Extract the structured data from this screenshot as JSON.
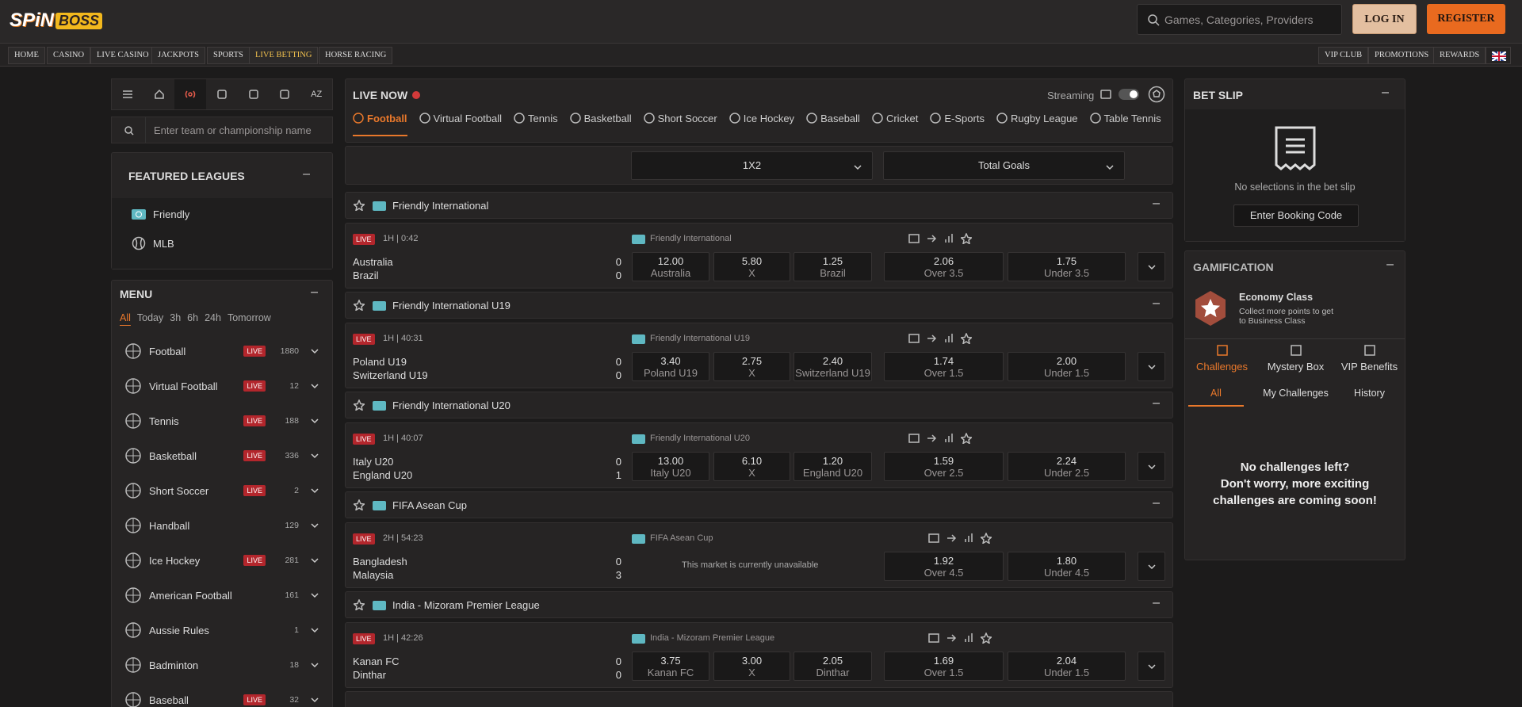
{
  "header": {
    "logo": [
      "SPiN",
      "BOSS"
    ],
    "search_placeholder": "Games, Categories, Providers",
    "login": "LOG IN",
    "register": "REGISTER"
  },
  "nav": {
    "left": [
      "HOME",
      "CASINO",
      "LIVE CASINO",
      "JACKPOTS",
      "SPORTS",
      "LIVE BETTING",
      "HORSE RACING"
    ],
    "right": [
      "VIP CLUB",
      "PROMOTIONS",
      "REWARDS"
    ]
  },
  "sidebar": {
    "az": "AZ",
    "search_placeholder": "Enter team or championship name",
    "featured": {
      "title": "FEATURED LEAGUES",
      "items": [
        "Friendly",
        "MLB"
      ]
    },
    "menu": {
      "title": "MENU",
      "filters": [
        "All",
        "Today",
        "3h",
        "6h",
        "24h",
        "Tomorrow"
      ],
      "sports": [
        {
          "name": "Football",
          "live": "LIVE",
          "count": 1880
        },
        {
          "name": "Virtual Football",
          "live": "LIVE",
          "count": 12
        },
        {
          "name": "Tennis",
          "live": "LIVE",
          "count": 188
        },
        {
          "name": "Basketball",
          "live": "LIVE",
          "count": 336
        },
        {
          "name": "Short Soccer",
          "live": "LIVE",
          "count": 2
        },
        {
          "name": "Handball",
          "count": 129
        },
        {
          "name": "Ice Hockey",
          "live": "LIVE",
          "count": 281
        },
        {
          "name": "American Football",
          "count": 161
        },
        {
          "name": "Aussie Rules",
          "count": 1
        },
        {
          "name": "Badminton",
          "count": 18
        },
        {
          "name": "Baseball",
          "live": "LIVE",
          "count": 32
        }
      ]
    }
  },
  "live": {
    "title": "LIVE NOW",
    "streaming": "Streaming",
    "tabs": [
      "Football",
      "Virtual Football",
      "Tennis",
      "Basketball",
      "Short Soccer",
      "Ice Hockey",
      "Baseball",
      "Cricket",
      "E-Sports",
      "Rugby League",
      "Table Tennis"
    ],
    "markets": [
      "1X2",
      "Total Goals"
    ],
    "unavailable": "This market is currently unavailable",
    "leagues": [
      {
        "name": "Friendly International",
        "event": {
          "status": "LIVE",
          "time": "1H | 0:42",
          "home": "Australia",
          "away": "Brazil",
          "score": [
            0,
            0
          ],
          "odds": [
            {
              "price": "12.00",
              "label": "Australia"
            },
            {
              "price": "5.80",
              "label": "X"
            },
            {
              "price": "1.25",
              "label": "Brazil"
            }
          ],
          "totals": [
            {
              "price": "2.06",
              "label": "Over 3.5"
            },
            {
              "price": "1.75",
              "label": "Under 3.5"
            }
          ]
        }
      },
      {
        "name": "Friendly International U19",
        "event": {
          "status": "LIVE",
          "time": "1H | 40:31",
          "home": "Poland U19",
          "away": "Switzerland U19",
          "score": [
            0,
            0
          ],
          "odds": [
            {
              "price": "3.40",
              "label": "Poland U19"
            },
            {
              "price": "2.75",
              "label": "X"
            },
            {
              "price": "2.40",
              "label": "Switzerland U19"
            }
          ],
          "totals": [
            {
              "price": "1.74",
              "label": "Over 1.5"
            },
            {
              "price": "2.00",
              "label": "Under 1.5"
            }
          ]
        }
      },
      {
        "name": "Friendly International U20",
        "event": {
          "status": "LIVE",
          "time": "1H | 40:07",
          "home": "Italy U20",
          "away": "England U20",
          "score": [
            0,
            1
          ],
          "odds": [
            {
              "price": "13.00",
              "label": "Italy U20"
            },
            {
              "price": "6.10",
              "label": "X"
            },
            {
              "price": "1.20",
              "label": "England U20"
            }
          ],
          "totals": [
            {
              "price": "1.59",
              "label": "Over 2.5"
            },
            {
              "price": "2.24",
              "label": "Under 2.5"
            }
          ]
        }
      },
      {
        "name": "FIFA Asean Cup",
        "event": {
          "status": "LIVE",
          "time": "2H | 54:23",
          "home": "Bangladesh",
          "away": "Malaysia",
          "score": [
            0,
            3
          ],
          "totals": [
            {
              "price": "1.92",
              "label": "Over 4.5"
            },
            {
              "price": "1.80",
              "label": "Under 4.5"
            }
          ]
        }
      },
      {
        "name": "India - Mizoram Premier League",
        "event": {
          "status": "LIVE",
          "time": "1H | 42:26",
          "home": "Kanan FC",
          "away": "Dinthar",
          "score": [
            0,
            0
          ],
          "odds": [
            {
              "price": "3.75",
              "label": "Kanan FC"
            },
            {
              "price": "3.00",
              "label": "X"
            },
            {
              "price": "2.05",
              "label": "Dinthar"
            }
          ],
          "totals": [
            {
              "price": "1.69",
              "label": "Over 1.5"
            },
            {
              "price": "2.04",
              "label": "Under 1.5"
            }
          ]
        }
      }
    ]
  },
  "betslip": {
    "title": "BET SLIP",
    "empty": "No selections in the bet slip",
    "booking": "Enter Booking Code"
  },
  "gamification": {
    "title": "GAMIFICATION",
    "level": "Economy Class",
    "desc": "Collect more points to get to Business Class",
    "tabs": [
      "Challenges",
      "Mystery Box",
      "VIP Benefits"
    ],
    "subtabs": [
      "All",
      "My Challenges",
      "History"
    ],
    "empty": [
      "No challenges left?",
      "Don't worry, more exciting",
      "challenges are coming soon!"
    ]
  }
}
